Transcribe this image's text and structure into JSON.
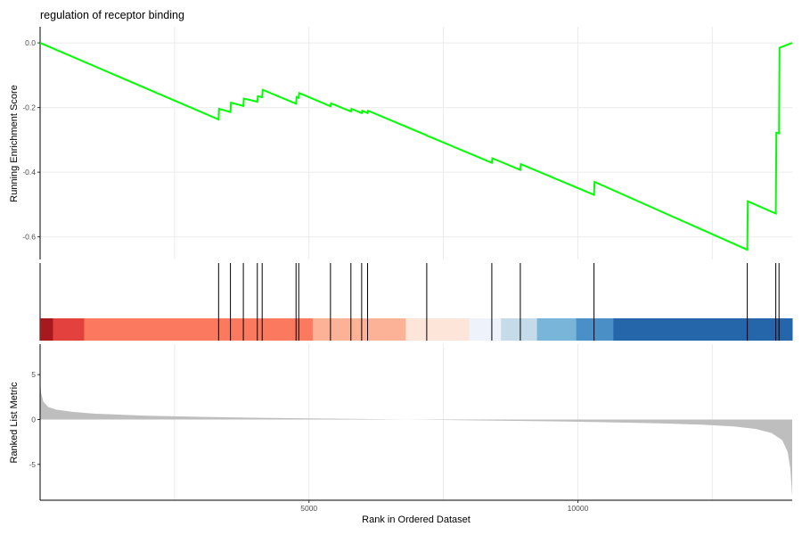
{
  "chart_data": {
    "type": "line",
    "title": "regulation of receptor binding",
    "xlabel": "Rank in Ordered Dataset",
    "x_range": [
      1,
      13985
    ],
    "x_ticks": [
      5000,
      10000
    ],
    "x_tick_labels": [
      "5000",
      "10000"
    ],
    "colors": {
      "es_line": "#00ff00",
      "gridline": "#ebebeb",
      "hit_line": "#000000",
      "metric_fill": "#bebebe",
      "axis": "#000000"
    },
    "panels": {
      "enrichment": {
        "ylabel": "Running Enrichment Score",
        "ylim": [
          -0.67,
          0.05
        ],
        "y_ticks": [
          0.0,
          -0.2,
          -0.4,
          -0.6
        ],
        "y_tick_labels": [
          "0.0",
          "-0.2",
          "-0.4",
          "-0.6"
        ],
        "points": [
          [
            1,
            0.0
          ],
          [
            3320,
            -0.237
          ],
          [
            3330,
            -0.204
          ],
          [
            3540,
            -0.214
          ],
          [
            3550,
            -0.185
          ],
          [
            3780,
            -0.195
          ],
          [
            3790,
            -0.172
          ],
          [
            4040,
            -0.182
          ],
          [
            4050,
            -0.165
          ],
          [
            4130,
            -0.168
          ],
          [
            4140,
            -0.145
          ],
          [
            4760,
            -0.188
          ],
          [
            4770,
            -0.167
          ],
          [
            4810,
            -0.17
          ],
          [
            4820,
            -0.155
          ],
          [
            5400,
            -0.196
          ],
          [
            5410,
            -0.187
          ],
          [
            5780,
            -0.212
          ],
          [
            5790,
            -0.204
          ],
          [
            5980,
            -0.217
          ],
          [
            5990,
            -0.21
          ],
          [
            6090,
            -0.217
          ],
          [
            6100,
            -0.21
          ],
          [
            7190,
            -0.286
          ],
          [
            7200,
            -0.287
          ],
          [
            8400,
            -0.371
          ],
          [
            8410,
            -0.357
          ],
          [
            8930,
            -0.393
          ],
          [
            8940,
            -0.375
          ],
          [
            10300,
            -0.47
          ],
          [
            10310,
            -0.43
          ],
          [
            13150,
            -0.64
          ],
          [
            13160,
            -0.49
          ],
          [
            13680,
            -0.528
          ],
          [
            13690,
            -0.278
          ],
          [
            13740,
            -0.28
          ],
          [
            13750,
            -0.015
          ],
          [
            13985,
            0.0
          ]
        ]
      },
      "hits": {
        "positions": [
          3320,
          3540,
          3780,
          4040,
          4130,
          4760,
          4810,
          5400,
          5780,
          5980,
          6090,
          7190,
          8400,
          8930,
          10300,
          13150,
          13680,
          13740
        ],
        "band": [
          {
            "from": 1,
            "to": 240,
            "color": "#a8191e"
          },
          {
            "from": 240,
            "to": 820,
            "color": "#e2413d"
          },
          {
            "from": 820,
            "to": 5070,
            "color": "#fb7a5f"
          },
          {
            "from": 5070,
            "to": 6800,
            "color": "#fcb297"
          },
          {
            "from": 6800,
            "to": 7980,
            "color": "#fee5d9"
          },
          {
            "from": 7980,
            "to": 8570,
            "color": "#eef3fb"
          },
          {
            "from": 8570,
            "to": 9240,
            "color": "#c5dbea"
          },
          {
            "from": 9240,
            "to": 9970,
            "color": "#79b5d9"
          },
          {
            "from": 9970,
            "to": 10660,
            "color": "#4b8fc7"
          },
          {
            "from": 10660,
            "to": 13985,
            "color": "#2565a9"
          }
        ]
      },
      "metric": {
        "ylabel": "Ranked List Metric",
        "ylim": [
          -9.0,
          8.4
        ],
        "y_ticks": [
          5,
          0,
          -5
        ],
        "y_tick_labels": [
          "5",
          "0",
          "-5"
        ],
        "curve": [
          [
            1,
            4.5
          ],
          [
            20,
            3.0
          ],
          [
            60,
            2.0
          ],
          [
            150,
            1.4
          ],
          [
            300,
            1.1
          ],
          [
            600,
            0.85
          ],
          [
            1000,
            0.65
          ],
          [
            2000,
            0.42
          ],
          [
            3000,
            0.3
          ],
          [
            4000,
            0.2
          ],
          [
            5000,
            0.12
          ],
          [
            6000,
            0.06
          ],
          [
            6800,
            0.0
          ],
          [
            7500,
            -0.05
          ],
          [
            8500,
            -0.12
          ],
          [
            9500,
            -0.2
          ],
          [
            10500,
            -0.3
          ],
          [
            11500,
            -0.43
          ],
          [
            12300,
            -0.58
          ],
          [
            12900,
            -0.78
          ],
          [
            13300,
            -1.05
          ],
          [
            13600,
            -1.5
          ],
          [
            13800,
            -2.3
          ],
          [
            13900,
            -3.6
          ],
          [
            13950,
            -5.5
          ],
          [
            13985,
            -8.5
          ]
        ]
      }
    }
  }
}
